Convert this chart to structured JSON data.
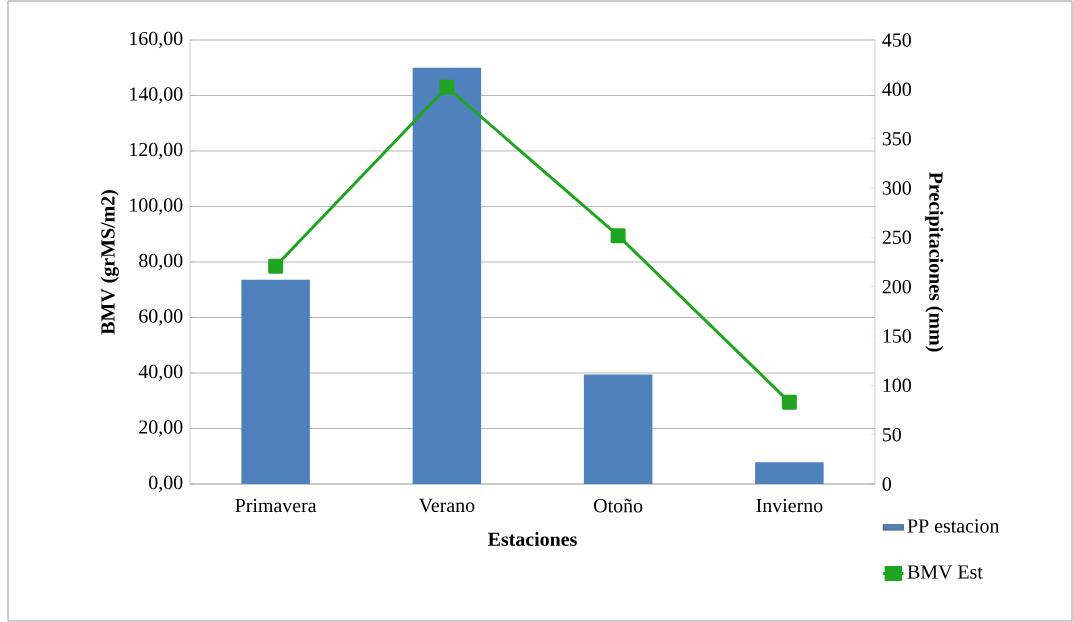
{
  "chart_data": {
    "type": "bar",
    "xlabel": "Estaciones",
    "ylabel": "BMV (grMS/m2)",
    "y2label": "Precipitaciones (mm)",
    "categories": [
      "Primavera",
      "Verano",
      "Otoño",
      "Invierno"
    ],
    "series": [
      {
        "name": "PP estacion",
        "axis": "y2",
        "color": "#4f81bd",
        "values": [
          207,
          422,
          111,
          22
        ]
      },
      {
        "name": "BMV Est",
        "type": "line",
        "color": "#1fa51f",
        "values": [
          78.5,
          143,
          89.5,
          29.5
        ]
      }
    ],
    "ylim": [
      0,
      160
    ],
    "yticks": [
      {
        "value": 0,
        "label": "0,00"
      },
      {
        "value": 20,
        "label": "20,00"
      },
      {
        "value": 40,
        "label": "40,00"
      },
      {
        "value": 60,
        "label": "60,00"
      },
      {
        "value": 80,
        "label": "80,00"
      },
      {
        "value": 100,
        "label": "100,00"
      },
      {
        "value": 120,
        "label": "120,00"
      },
      {
        "value": 140,
        "label": "140,00"
      },
      {
        "value": 160,
        "label": "160,00"
      }
    ],
    "y2lim": [
      0,
      450
    ],
    "y2ticks": [
      0,
      50,
      100,
      150,
      200,
      250,
      300,
      350,
      400,
      450
    ],
    "grid": "y",
    "legend": "right",
    "marker": "square",
    "line_style": "solid"
  }
}
